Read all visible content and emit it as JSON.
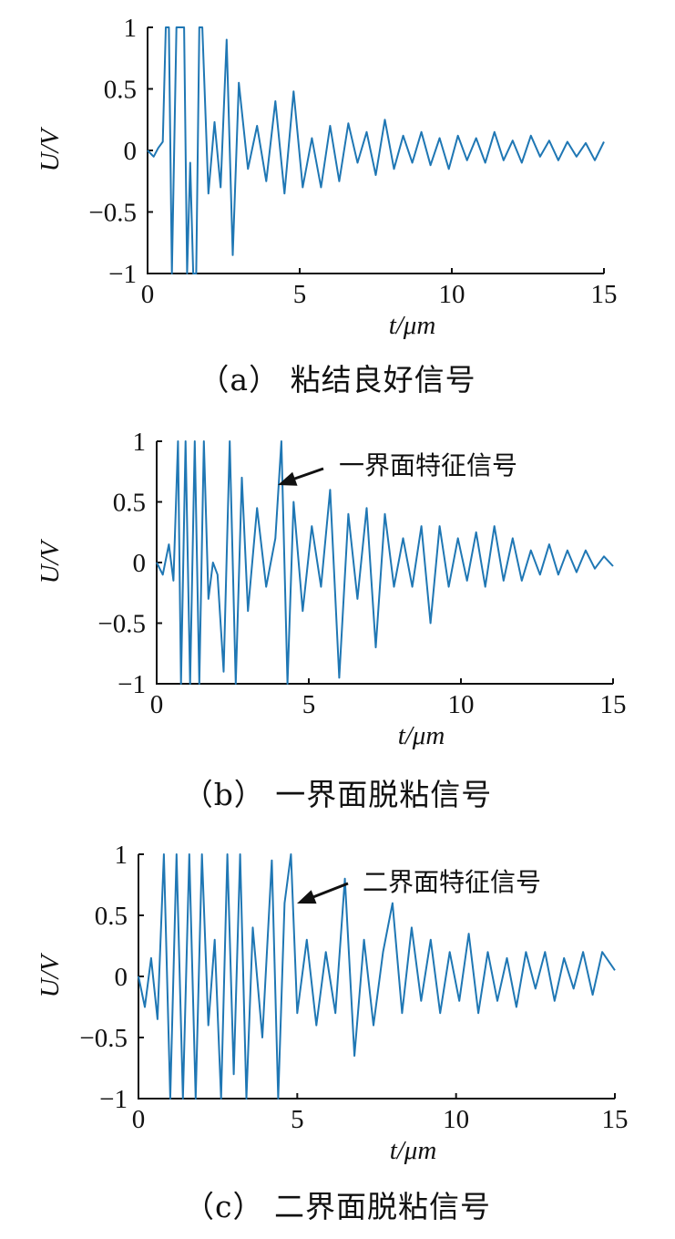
{
  "chart_data": [
    {
      "type": "line",
      "caption": "（a） 粘结良好信号",
      "xlabel": "t/μm",
      "ylabel": "U/V",
      "xlim": [
        0,
        15
      ],
      "ylim": [
        -1,
        1
      ],
      "xticks": [
        "0",
        "5",
        "10",
        "15"
      ],
      "yticks": [
        "1",
        "0.5",
        "0",
        "-0.5",
        "-1"
      ],
      "annotation": "",
      "series": [
        {
          "color": "#1f77b4",
          "x": [
            0,
            0.2,
            0.35,
            0.5,
            0.6,
            0.7,
            0.8,
            0.95,
            1.1,
            1.2,
            1.3,
            1.4,
            1.5,
            1.6,
            1.7,
            1.8,
            2.0,
            2.2,
            2.4,
            2.6,
            2.8,
            3.0,
            3.3,
            3.6,
            3.9,
            4.2,
            4.5,
            4.8,
            5.1,
            5.4,
            5.7,
            6.0,
            6.3,
            6.6,
            6.9,
            7.2,
            7.5,
            7.8,
            8.1,
            8.4,
            8.7,
            9.0,
            9.3,
            9.6,
            9.9,
            10.2,
            10.5,
            10.8,
            11.1,
            11.4,
            11.7,
            12.0,
            12.3,
            12.6,
            12.9,
            13.2,
            13.5,
            13.8,
            14.1,
            14.4,
            14.7,
            15.0
          ],
          "values": [
            0,
            -0.05,
            0.02,
            0.07,
            1,
            1,
            -1,
            1,
            1,
            1,
            -1,
            -0.1,
            -1,
            -1,
            1,
            1,
            -0.35,
            0.23,
            -0.3,
            0.9,
            -0.85,
            0.55,
            -0.15,
            0.2,
            -0.25,
            0.4,
            -0.35,
            0.48,
            -0.3,
            0.1,
            -0.3,
            0.2,
            -0.25,
            0.22,
            -0.1,
            0.15,
            -0.2,
            0.25,
            -0.15,
            0.12,
            -0.1,
            0.15,
            -0.12,
            0.1,
            -0.15,
            0.12,
            -0.08,
            0.1,
            -0.1,
            0.15,
            -0.08,
            0.08,
            -0.1,
            0.12,
            -0.05,
            0.08,
            -0.08,
            0.07,
            -0.05,
            0.06,
            -0.08,
            0.07
          ]
        }
      ]
    },
    {
      "type": "line",
      "caption": "（b） 一界面脱粘信号",
      "xlabel": "t/μm",
      "ylabel": "U/V",
      "xlim": [
        0,
        15
      ],
      "ylim": [
        -1,
        1
      ],
      "xticks": [
        "0",
        "5",
        "10",
        "15"
      ],
      "yticks": [
        "1",
        "0.5",
        "0",
        "-0.5",
        "-1"
      ],
      "annotation": "一界面特征信号",
      "series": [
        {
          "color": "#1f77b4",
          "x": [
            0,
            0.2,
            0.4,
            0.55,
            0.7,
            0.8,
            0.95,
            1.1,
            1.25,
            1.4,
            1.55,
            1.7,
            1.85,
            2.0,
            2.2,
            2.4,
            2.6,
            2.8,
            3.0,
            3.3,
            3.6,
            3.9,
            4.1,
            4.3,
            4.5,
            4.8,
            5.1,
            5.4,
            5.7,
            6.0,
            6.3,
            6.6,
            6.9,
            7.2,
            7.5,
            7.8,
            8.1,
            8.4,
            8.7,
            9.0,
            9.3,
            9.6,
            9.9,
            10.2,
            10.5,
            10.8,
            11.1,
            11.4,
            11.7,
            12.0,
            12.3,
            12.6,
            12.9,
            13.2,
            13.5,
            13.8,
            14.1,
            14.4,
            14.7,
            15.0
          ],
          "values": [
            0,
            -0.1,
            0.15,
            -0.15,
            1,
            -1,
            1,
            -1,
            1,
            -1,
            1,
            -0.3,
            0,
            -0.1,
            -0.9,
            1,
            -1,
            0.7,
            -0.4,
            0.45,
            -0.2,
            0.2,
            1,
            -1,
            0.5,
            -0.4,
            0.3,
            -0.2,
            0.6,
            -0.95,
            0.4,
            -0.3,
            0.45,
            -0.7,
            0.4,
            -0.2,
            0.2,
            -0.2,
            0.3,
            -0.5,
            0.3,
            -0.2,
            0.2,
            -0.15,
            0.25,
            -0.2,
            0.3,
            -0.15,
            0.2,
            -0.15,
            0.1,
            -0.1,
            0.15,
            -0.1,
            0.1,
            -0.08,
            0.1,
            -0.05,
            0.05,
            -0.03
          ]
        }
      ]
    },
    {
      "type": "line",
      "caption": "（c） 二界面脱粘信号",
      "xlabel": "t/μm",
      "ylabel": "U/V",
      "xlim": [
        0,
        15
      ],
      "ylim": [
        -1,
        1
      ],
      "xticks": [
        "0",
        "5",
        "10",
        "15"
      ],
      "yticks": [
        "1",
        "0.5",
        "0",
        "-0.5",
        "-1"
      ],
      "annotation": "二界面特征信号",
      "series": [
        {
          "color": "#1f77b4",
          "x": [
            0,
            0.2,
            0.4,
            0.6,
            0.8,
            1.0,
            1.2,
            1.4,
            1.6,
            1.8,
            2.0,
            2.2,
            2.4,
            2.6,
            2.8,
            3.0,
            3.2,
            3.4,
            3.6,
            3.9,
            4.2,
            4.4,
            4.6,
            4.8,
            5.0,
            5.3,
            5.6,
            5.9,
            6.2,
            6.5,
            6.8,
            7.1,
            7.4,
            7.7,
            8.0,
            8.3,
            8.6,
            8.9,
            9.2,
            9.5,
            9.8,
            10.1,
            10.4,
            10.7,
            11.0,
            11.3,
            11.6,
            11.9,
            12.2,
            12.5,
            12.8,
            13.1,
            13.4,
            13.7,
            14.0,
            14.3,
            14.6,
            15.0
          ],
          "values": [
            0,
            -0.25,
            0.15,
            -0.35,
            1,
            -1,
            1,
            -1,
            1,
            -1,
            1,
            -0.4,
            0.3,
            -1,
            1,
            -0.8,
            1,
            -1,
            0.4,
            -0.5,
            0.95,
            -1,
            0.6,
            1,
            -0.3,
            0.3,
            -0.4,
            0.2,
            -0.3,
            0.8,
            -0.65,
            0.3,
            -0.4,
            0.2,
            0.6,
            -0.3,
            0.4,
            -0.2,
            0.3,
            -0.3,
            0.2,
            -0.2,
            0.35,
            -0.3,
            0.2,
            -0.2,
            0.15,
            -0.25,
            0.2,
            -0.1,
            0.2,
            -0.2,
            0.15,
            -0.1,
            0.2,
            -0.15,
            0.2,
            0.05
          ]
        }
      ]
    }
  ]
}
